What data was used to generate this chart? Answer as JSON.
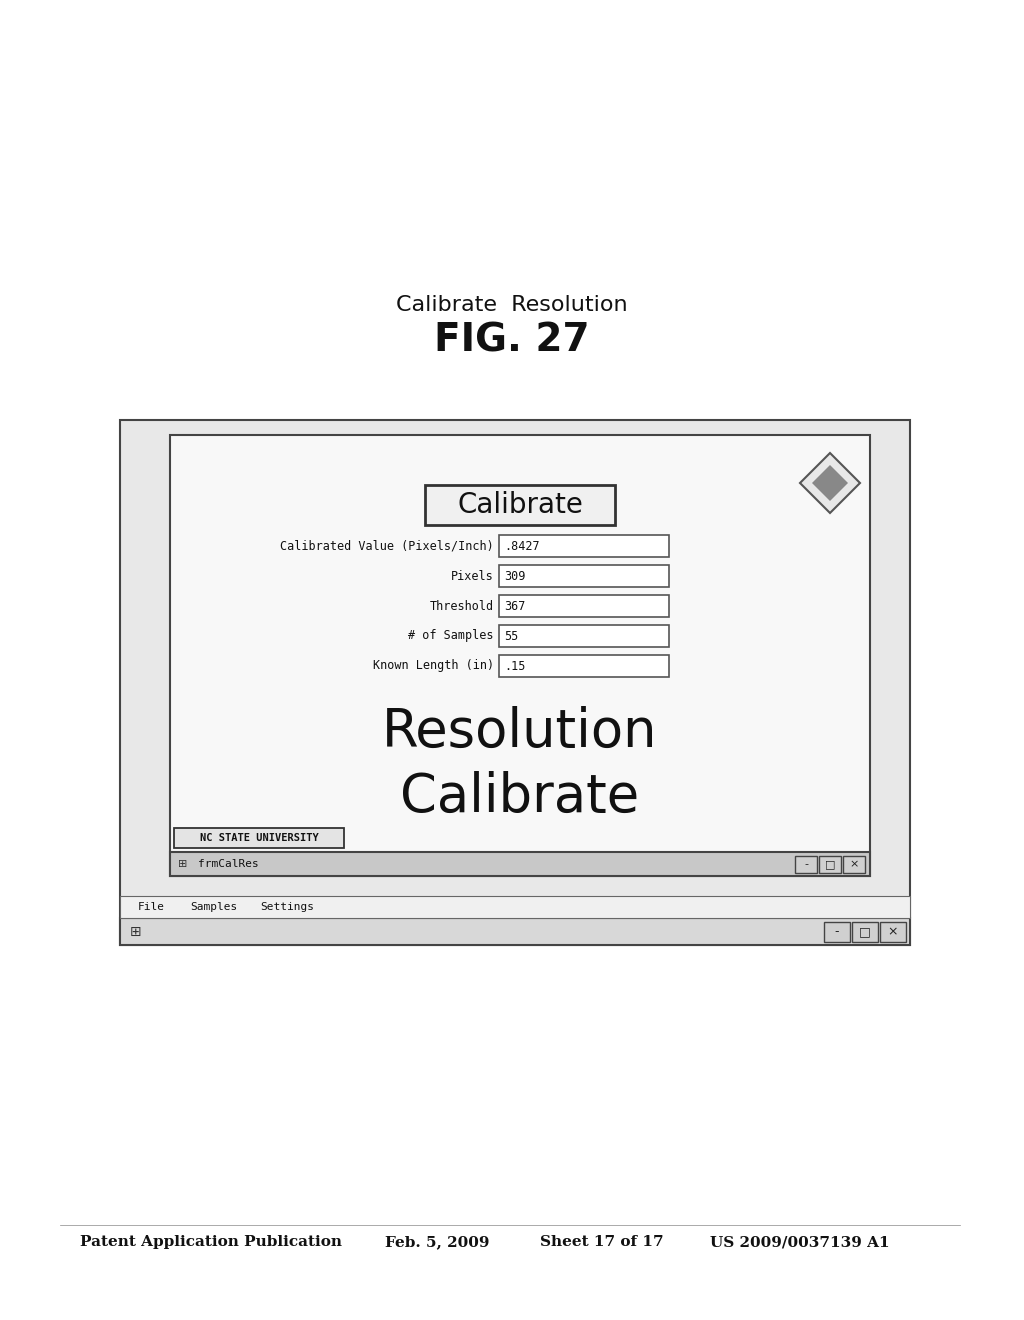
{
  "bg_color": "#ffffff",
  "header_text": "Patent Application Publication",
  "header_date": "Feb. 5, 2009",
  "header_sheet": "Sheet 17 of 17",
  "header_patent": "US 2009/0037139 A1",
  "fig_label": "FIG. 27",
  "fig_caption": "Calibrate  Resolution",
  "outer_win_menu": [
    "File",
    "Samples",
    "Settings"
  ],
  "inner_win_title": "frmCalRes",
  "university_label": "NC STATE UNIVERSITY",
  "main_title_line1": "Calibrate",
  "main_title_line2": "Resolution",
  "fields": [
    {
      "label": "Known Length (in)",
      "value": ".15"
    },
    {
      "label": "# of Samples",
      "value": "55"
    },
    {
      "label": "Threshold",
      "value": "367"
    },
    {
      "label": "Pixels",
      "value": "309"
    },
    {
      "label": "Calibrated Value (Pixels/Inch)",
      "value": ".8427"
    }
  ],
  "button_label": "Calibrate"
}
